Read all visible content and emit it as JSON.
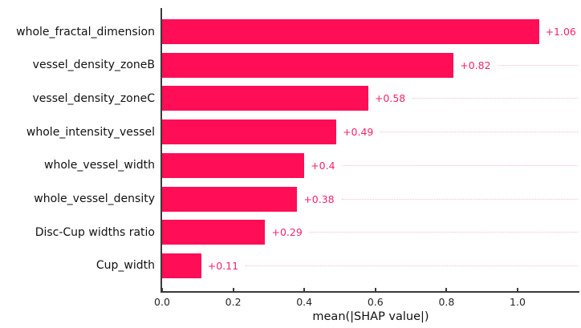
{
  "chart_data": {
    "type": "bar",
    "orientation": "horizontal",
    "title": "",
    "xlabel": "mean(|SHAP value|)",
    "categories": [
      "whole_fractal_dimension",
      "vessel_density_zoneB",
      "vessel_density_zoneC",
      "whole_intensity_vessel",
      "whole_vessel_width",
      "whole_vessel_density",
      "Disc-Cup widths ratio",
      "Cup_width"
    ],
    "values": [
      1.06,
      0.82,
      0.58,
      0.49,
      0.4,
      0.38,
      0.29,
      0.11
    ],
    "bar_labels": [
      "+1.06",
      "+0.82",
      "+0.58",
      "+0.49",
      "+0.4",
      "+0.38",
      "+0.29",
      "+0.11"
    ],
    "x_ticks": [
      0.0,
      0.2,
      0.4,
      0.6,
      0.8,
      1.0
    ],
    "x_tick_labels": [
      "0.0",
      "0.2",
      "0.4",
      "0.6",
      "0.8",
      "1.0"
    ],
    "xlim": [
      0,
      1.178
    ],
    "grid": "dotted leader lines from value labels to right edge",
    "legend": "none",
    "colors": {
      "bar": "#ff0d57",
      "value_label": "#f5246b",
      "leader_line": "#f3bed0",
      "spine": "#3a3a3a",
      "tick_label": "#262626",
      "category_label": "#111111",
      "background": "#ffffff"
    }
  }
}
